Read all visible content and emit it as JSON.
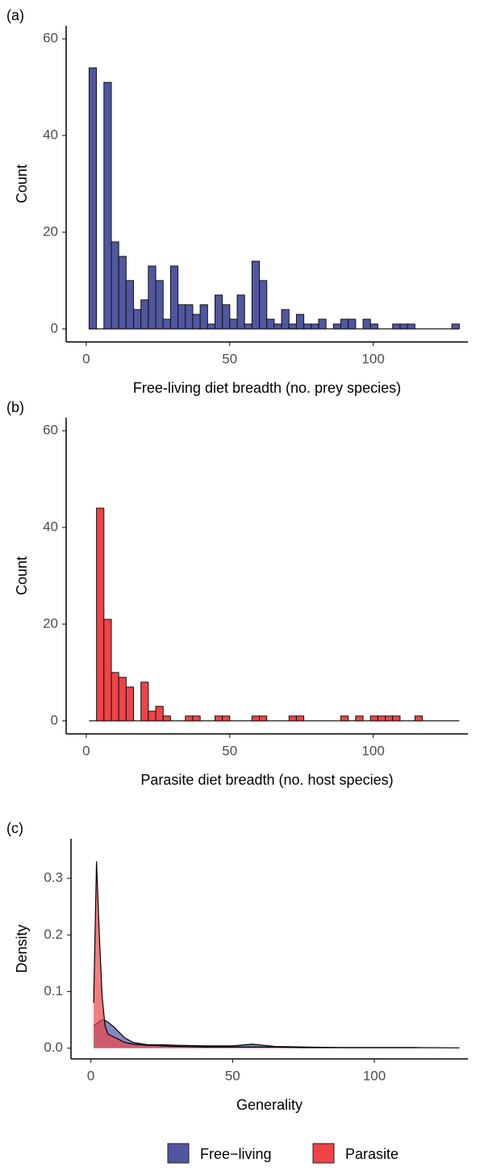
{
  "chart_data": [
    {
      "type": "histogram",
      "panel": "(a)",
      "xlabel": "Free-living diet breadth (no. prey species)",
      "ylabel": "Count",
      "bins": [
        1,
        3.58,
        6.16,
        8.74,
        11.32,
        13.9,
        16.48,
        19.06,
        21.64,
        24.22,
        26.8,
        29.38,
        31.96,
        34.54,
        37.12,
        39.7,
        42.28,
        44.86,
        47.44,
        50.02,
        52.6,
        55.18,
        57.76,
        60.34,
        62.92,
        65.5,
        68.08,
        70.66,
        73.24,
        75.82,
        78.4,
        80.98,
        83.56,
        86.14,
        88.72,
        91.3,
        93.88,
        96.46,
        99.04,
        101.62,
        104.2,
        106.78,
        109.36,
        111.94,
        114.52,
        117.1,
        119.68,
        122.26,
        124.84,
        127.42,
        130
      ],
      "values": [
        54,
        0,
        51,
        18,
        15,
        10,
        4,
        6,
        13,
        10,
        2,
        13,
        5,
        5,
        3,
        5,
        1,
        7,
        5,
        2,
        7,
        1,
        14,
        10,
        2,
        1,
        4,
        1,
        3,
        1,
        1,
        2,
        0,
        1,
        2,
        2,
        0,
        2,
        1,
        0,
        0,
        1,
        1,
        1,
        0,
        0,
        0,
        0,
        0,
        1
      ],
      "color": "#5057a0",
      "xlim": [
        -7,
        133
      ],
      "ylim": [
        -2.7,
        62.7
      ],
      "xticks": [
        0,
        50,
        100
      ],
      "yticks": [
        0,
        20,
        40,
        60
      ]
    },
    {
      "type": "histogram",
      "panel": "(b)",
      "xlabel": "Parasite diet breadth (no. host species)",
      "ylabel": "Count",
      "bins": [
        1,
        3.58,
        6.16,
        8.74,
        11.32,
        13.9,
        16.48,
        19.06,
        21.64,
        24.22,
        26.8,
        29.38,
        31.96,
        34.54,
        37.12,
        39.7,
        42.28,
        44.86,
        47.44,
        50.02,
        52.6,
        55.18,
        57.76,
        60.34,
        62.92,
        65.5,
        68.08,
        70.66,
        73.24,
        75.82,
        78.4,
        80.98,
        83.56,
        86.14,
        88.72,
        91.3,
        93.88,
        96.46,
        99.04,
        101.62,
        104.2,
        106.78,
        109.36,
        111.94,
        114.52,
        117.1,
        119.68,
        122.26,
        124.84,
        127.42,
        130
      ],
      "values": [
        0,
        44,
        21,
        10,
        9,
        7,
        0,
        8,
        2,
        3,
        1,
        0,
        0,
        1,
        1,
        0,
        0,
        1,
        1,
        0,
        0,
        0,
        1,
        1,
        0,
        0,
        0,
        1,
        1,
        0,
        0,
        0,
        0,
        0,
        1,
        0,
        1,
        0,
        1,
        1,
        1,
        1,
        0,
        0,
        1,
        0,
        0,
        0,
        0,
        0
      ],
      "color": "#ee4448",
      "xlim": [
        -7,
        133
      ],
      "ylim": [
        -2.7,
        62.7
      ],
      "xticks": [
        0,
        50,
        100
      ],
      "yticks": [
        0,
        20,
        40,
        60
      ]
    },
    {
      "type": "density",
      "panel": "(c)",
      "xlabel": "Generality",
      "ylabel": "Density",
      "x": [
        1,
        2,
        3,
        4,
        5,
        6,
        8,
        10,
        12,
        15,
        20,
        25,
        30,
        40,
        50,
        57,
        65,
        75,
        90,
        100,
        115,
        130
      ],
      "series": [
        {
          "name": "Free−living",
          "color": "#5057a0",
          "values": [
            0.04,
            0.043,
            0.047,
            0.05,
            0.049,
            0.046,
            0.038,
            0.028,
            0.018,
            0.01,
            0.006,
            0.006,
            0.005,
            0.004,
            0.004,
            0.007,
            0.003,
            0.002,
            0.001,
            0.001,
            0.001,
            0.0005
          ]
        },
        {
          "name": "Parasite",
          "color": "#ee4448",
          "values": [
            0.08,
            0.33,
            0.2,
            0.09,
            0.04,
            0.025,
            0.02,
            0.015,
            0.01,
            0.007,
            0.005,
            0.004,
            0.003,
            0.002,
            0.002,
            0.002,
            0.002,
            0.001,
            0.001,
            0.001,
            0.001,
            null
          ]
        }
      ],
      "xlim": [
        -7,
        133
      ],
      "ylim": [
        -0.019,
        0.37
      ],
      "xticks": [
        0,
        50,
        100
      ],
      "yticks": [
        0.0,
        0.1,
        0.2,
        0.3
      ],
      "legend": "bottom"
    }
  ]
}
